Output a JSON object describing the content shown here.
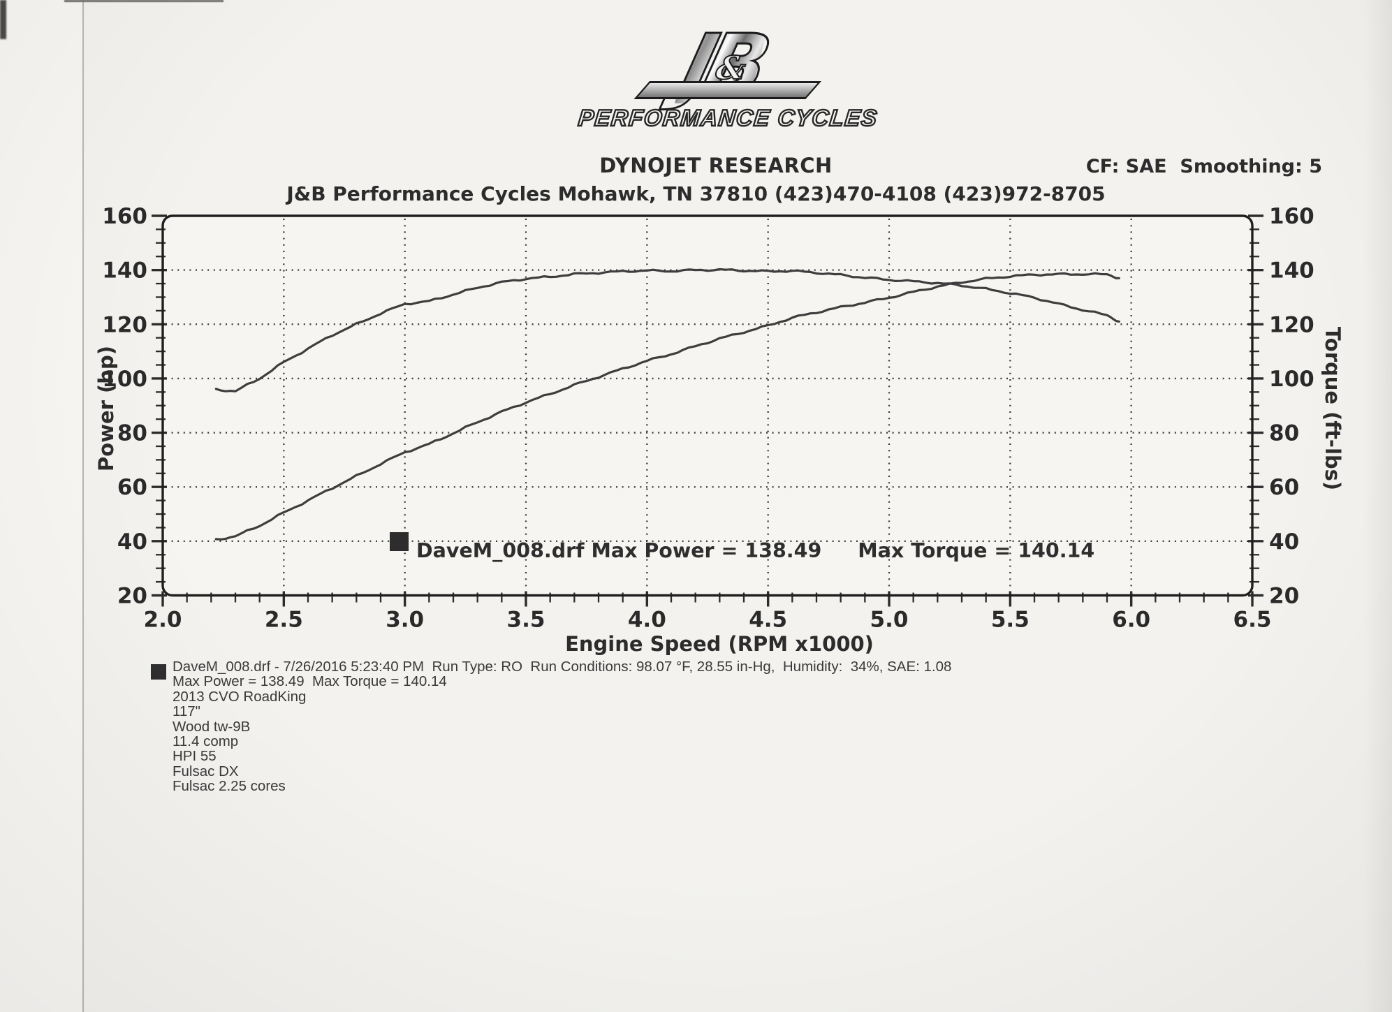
{
  "logo": {
    "jb": "JB",
    "amp": "&",
    "subtitle": "PERFORMANCE CYCLES"
  },
  "header": {
    "brand": "DYNOJET RESEARCH",
    "cf": "CF: SAE  Smoothing: 5",
    "title": "J&B Performance Cycles Mohawk, TN 37810 (423)470-4108 (423)972-8705"
  },
  "overlay": {
    "file_power": "DaveM_008.drf Max Power = 138.49",
    "torque": "Max Torque = 140.14"
  },
  "footer": {
    "lines": [
      "DaveM_008.drf - 7/26/2016 5:23:40 PM  Run Type: RO  Run Conditions: 98.07 °F, 28.55 in-Hg,  Humidity:  34%, SAE: 1.08",
      "Max Power = 138.49  Max Torque = 140.14",
      "2013 CVO RoadKing",
      "117\"",
      "Wood tw-9B",
      "11.4 comp",
      "HPI 55",
      "Fulsac DX",
      "Fulsac 2.25 cores"
    ]
  },
  "chart_data": {
    "type": "line",
    "title": "",
    "xlabel": "Engine Speed (RPM x1000)",
    "ylabel_left": "Power (hp)",
    "ylabel_right": "Torque (ft-lbs)",
    "xlim": [
      2.0,
      6.5
    ],
    "ylim": [
      20,
      160
    ],
    "x_tick_labels": [
      "2.0",
      "2.5",
      "3.0",
      "3.5",
      "4.0",
      "4.5",
      "5.0",
      "5.5",
      "6.0",
      "6.5"
    ],
    "y_tick_labels": [
      "20",
      "40",
      "60",
      "80",
      "100",
      "120",
      "140",
      "160"
    ],
    "x_minor_step": 0.1,
    "y_minor_step": 5,
    "grid": "dotted",
    "legend_position": "inside-bottom",
    "max_power": 138.49,
    "max_torque": 140.14,
    "x": [
      2.22,
      2.3,
      2.4,
      2.5,
      2.6,
      2.7,
      2.8,
      2.9,
      3.0,
      3.1,
      3.2,
      3.3,
      3.4,
      3.5,
      3.6,
      3.7,
      3.8,
      3.9,
      4.0,
      4.1,
      4.2,
      4.3,
      4.4,
      4.5,
      4.6,
      4.7,
      4.8,
      4.9,
      5.0,
      5.1,
      5.2,
      5.3,
      5.4,
      5.5,
      5.6,
      5.7,
      5.8,
      5.9,
      5.95
    ],
    "series": [
      {
        "name": "power_hp",
        "values": [
          40.6,
          41.8,
          45.7,
          50.5,
          55.0,
          59.6,
          64.0,
          68.5,
          72.8,
          75.8,
          79.8,
          83.9,
          87.7,
          91.2,
          94.3,
          97.6,
          100.6,
          103.6,
          106.5,
          109.0,
          111.9,
          114.7,
          117.1,
          119.5,
          122.4,
          124.4,
          126.3,
          128.0,
          129.8,
          131.9,
          133.9,
          135.5,
          136.8,
          137.7,
          138.3,
          138.45,
          138.49,
          138.4,
          137.0
        ]
      },
      {
        "name": "torque_ftlbs",
        "values": [
          96.0,
          95.3,
          100.0,
          106.0,
          111.0,
          116.0,
          120.0,
          124.0,
          127.5,
          128.5,
          131.0,
          133.5,
          135.5,
          136.8,
          137.5,
          138.5,
          139.0,
          139.5,
          139.8,
          139.6,
          140.0,
          140.1,
          139.8,
          139.5,
          139.7,
          139.0,
          138.2,
          137.2,
          136.4,
          135.8,
          135.2,
          134.3,
          133.0,
          131.5,
          129.8,
          127.5,
          125.3,
          123.3,
          121.0
        ]
      }
    ],
    "colors": {
      "curve": "#3e3e3e",
      "grid": "#3a3a3a",
      "frame": "#1f1f1f",
      "paper": "#f6f5f2"
    }
  }
}
